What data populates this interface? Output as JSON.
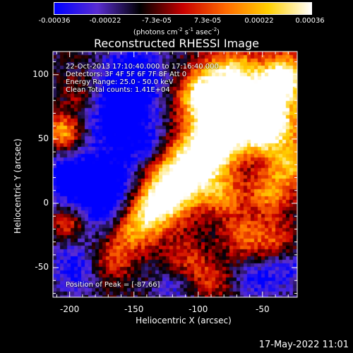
{
  "colorbar": {
    "ticks": [
      "-0.00036",
      "-0.00022",
      "-7.3e-05",
      "7.3e-05",
      "0.00022",
      "0.00036"
    ],
    "units_pre": "(photons cm",
    "units_sup1": "-2",
    "units_mid": " s",
    "units_sup2": "-1",
    "units_post": " asec",
    "units_sup3": "-2",
    "units_end": ")"
  },
  "chart_data": {
    "type": "heatmap",
    "title": "Reconstructed RHESSI Image",
    "xlabel": "Heliocentric X (arcsec)",
    "ylabel": "Heliocentric Y (arcsec)",
    "xlim": [
      -213,
      -23
    ],
    "ylim": [
      -73,
      118
    ],
    "xticks": [
      -200,
      -150,
      -100,
      -50
    ],
    "yticks": [
      100,
      50,
      0,
      -50
    ],
    "color_range": [
      -0.00036,
      0.00036
    ],
    "colormap": [
      "#0000ff",
      "#5a2dd2",
      "#000000",
      "#c80000",
      "#ff6a00",
      "#ffd000",
      "#ffffff"
    ],
    "peak": [
      -87,
      66
    ],
    "info_lines": [
      "22-Oct-2013 17:10:40.000 to 17:16:40.000",
      "Detectors: 3F 4F 5F 6F 7F 8F  Att 0",
      "Energy Range: 25.0 - 50.0 keV",
      "Clean     Total counts: 1.41E+04"
    ],
    "peak_label": "Position of Peak = [-87,66]"
  },
  "footer": {
    "timestamp": "17-May-2022 11:01"
  }
}
